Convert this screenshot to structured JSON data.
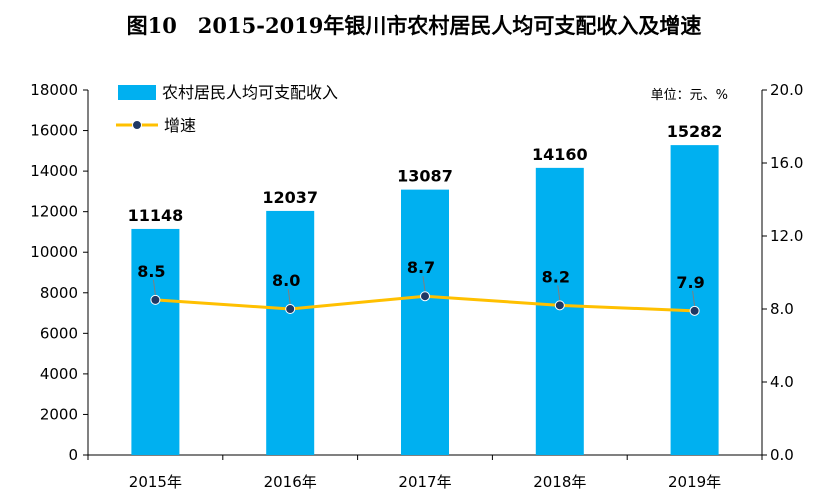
{
  "chart_data": {
    "type": "bar",
    "title": "图10　2015-2019年银川市农村居民人均可支配收入及增速",
    "unit_label": "单位：元、%",
    "categories": [
      "2015年",
      "2016年",
      "2017年",
      "2018年",
      "2019年"
    ],
    "series": [
      {
        "name": "农村居民人均可支配收入",
        "type": "bar",
        "axis": "left",
        "values": [
          11148,
          12037,
          13087,
          14160,
          15282
        ],
        "color": "#00B0F0"
      },
      {
        "name": "增速",
        "type": "line",
        "axis": "right",
        "values": [
          8.5,
          8.0,
          8.7,
          8.2,
          7.9
        ],
        "color": "#FFC000",
        "marker_color": "#1F3864"
      }
    ],
    "y_left": {
      "min": 0,
      "max": 18000,
      "step": 2000,
      "ticks": [
        "0",
        "2000",
        "4000",
        "6000",
        "8000",
        "10000",
        "12000",
        "14000",
        "16000",
        "18000"
      ]
    },
    "y_right": {
      "min": 0,
      "max": 20,
      "step": 4,
      "ticks": [
        "0.0",
        "4.0",
        "8.0",
        "12.0",
        "16.0",
        "20.0"
      ]
    },
    "bar_labels": [
      "11148",
      "12037",
      "13087",
      "14160",
      "15282"
    ],
    "rate_labels": [
      "8.5",
      "8.0",
      "8.7",
      "8.2",
      "7.9"
    ],
    "grid": false,
    "legend_position": "top-left"
  }
}
